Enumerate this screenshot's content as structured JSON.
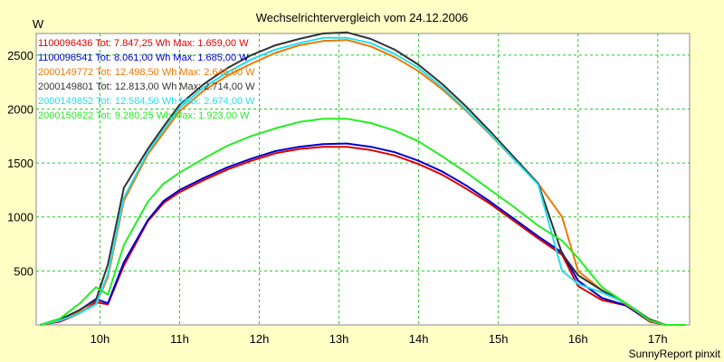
{
  "chart_data": {
    "type": "line",
    "title": "Wechselrichtervergleich vom 24.12.2006",
    "ylabel": "W",
    "xlabel": "",
    "footer": "SunnyReport pinxit",
    "x_tick_labels": [
      "10h",
      "11h",
      "12h",
      "13h",
      "14h",
      "15h",
      "16h",
      "17h"
    ],
    "x_ticks": [
      10,
      11,
      12,
      13,
      14,
      15,
      16,
      17
    ],
    "y_ticks": [
      500,
      1000,
      1500,
      2000,
      2500
    ],
    "xlim": [
      9.2,
      17.4
    ],
    "ylim": [
      0,
      2700
    ],
    "grid": true,
    "legend_position": "top-left",
    "plot_background": "#ffffff",
    "grid_color": "#22cc22",
    "x": [
      9.25,
      9.5,
      9.75,
      9.95,
      10.1,
      10.3,
      10.6,
      10.8,
      11.0,
      11.3,
      11.6,
      11.9,
      12.2,
      12.5,
      12.8,
      13.1,
      13.4,
      13.7,
      14.0,
      14.3,
      14.6,
      14.9,
      15.2,
      15.5,
      15.8,
      16.0,
      16.3,
      16.6,
      16.9,
      17.1,
      17.35
    ],
    "series": [
      {
        "name": "1100096436 Tot: 7.847,25 Wh Max: 1.659,00 W",
        "color": "#dd0000",
        "values": [
          0,
          30,
          110,
          210,
          190,
          550,
          960,
          1130,
          1230,
          1340,
          1440,
          1520,
          1590,
          1630,
          1650,
          1650,
          1620,
          1570,
          1490,
          1390,
          1260,
          1120,
          960,
          800,
          650,
          360,
          230,
          180,
          30,
          0,
          0
        ]
      },
      {
        "name": "1100096541 Tot: 8.061,00 Wh Max: 1.685,00 W",
        "color": "#0000cc",
        "values": [
          0,
          40,
          140,
          240,
          200,
          580,
          970,
          1150,
          1250,
          1360,
          1460,
          1540,
          1610,
          1650,
          1675,
          1680,
          1650,
          1600,
          1520,
          1420,
          1290,
          1140,
          980,
          820,
          670,
          410,
          250,
          180,
          40,
          0,
          0
        ]
      },
      {
        "name": "2000149772 Tot: 12.498,50 Wh Max: 2.646,00 W",
        "color": "#ee7700",
        "values": [
          0,
          40,
          120,
          190,
          440,
          1150,
          1580,
          1780,
          1980,
          2170,
          2310,
          2420,
          2520,
          2590,
          2630,
          2640,
          2580,
          2480,
          2350,
          2180,
          1980,
          1760,
          1530,
          1310,
          1000,
          500,
          320,
          190,
          50,
          0,
          0
        ]
      },
      {
        "name": "2000149801 Tot: 12.813,00 Wh Max: 2.714,00 W",
        "color": "#333333",
        "values": [
          0,
          50,
          140,
          230,
          560,
          1270,
          1630,
          1840,
          2040,
          2230,
          2380,
          2500,
          2590,
          2650,
          2700,
          2710,
          2650,
          2550,
          2410,
          2230,
          2020,
          1790,
          1550,
          1310,
          660,
          460,
          320,
          200,
          50,
          0,
          0
        ]
      },
      {
        "name": "2000149852 Tot: 12.584,50 Wh Max: 2.674,00 W",
        "color": "#22ddee",
        "values": [
          0,
          40,
          110,
          190,
          470,
          1180,
          1600,
          1810,
          2010,
          2200,
          2340,
          2460,
          2550,
          2610,
          2660,
          2660,
          2610,
          2510,
          2380,
          2200,
          1990,
          1770,
          1530,
          1300,
          500,
          380,
          300,
          200,
          40,
          0,
          0
        ]
      },
      {
        "name": "2000150622 Tot: 9.280,25 Wh Max: 1.923,00 W",
        "color": "#22ee22",
        "values": [
          0,
          60,
          200,
          350,
          280,
          740,
          1140,
          1310,
          1410,
          1540,
          1660,
          1750,
          1820,
          1880,
          1910,
          1910,
          1870,
          1800,
          1700,
          1560,
          1410,
          1250,
          1090,
          920,
          780,
          620,
          350,
          200,
          40,
          0,
          0
        ]
      }
    ]
  }
}
